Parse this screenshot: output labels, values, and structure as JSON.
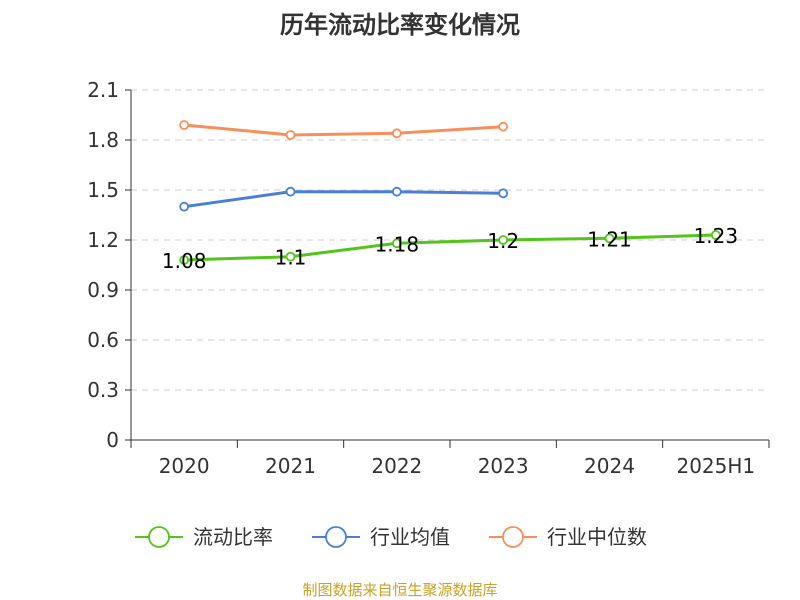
{
  "chart_data": {
    "type": "line",
    "title": "历年流动比率变化情况",
    "categories": [
      "2020",
      "2021",
      "2022",
      "2023",
      "2024",
      "2025H1"
    ],
    "ylim": [
      0,
      2.1
    ],
    "yticks": [
      "0",
      "0.3",
      "0.6",
      "0.9",
      "1.2",
      "1.5",
      "1.8",
      "2.1"
    ],
    "grid": true,
    "legend_position": "bottom",
    "series": [
      {
        "name": "流动比率",
        "color": "#52c41a",
        "values": [
          1.08,
          1.1,
          1.18,
          1.2,
          1.21,
          1.23
        ],
        "labels": [
          "1.08",
          "1.1",
          "1.18",
          "1.2",
          "1.21",
          "1.23"
        ]
      },
      {
        "name": "行业均值",
        "color": "#4a7fd6",
        "values": [
          1.4,
          1.49,
          1.49,
          1.48,
          null,
          null
        ]
      },
      {
        "name": "行业中位数",
        "color": "#f5905a",
        "values": [
          1.89,
          1.83,
          1.84,
          1.88,
          null,
          null
        ]
      }
    ]
  },
  "source": "制图数据来自恒生聚源数据库"
}
